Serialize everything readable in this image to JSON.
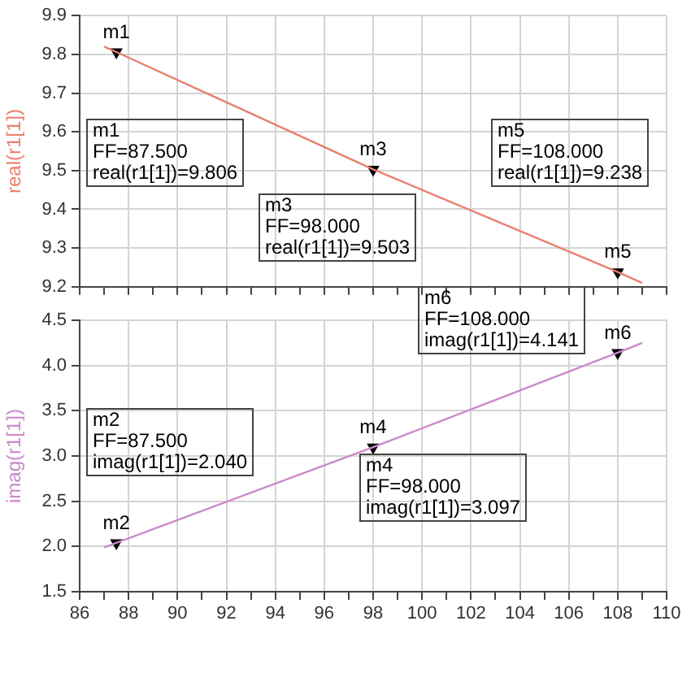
{
  "chart_data": [
    {
      "type": "line",
      "ylabel": "real(r1[1])",
      "xlim": [
        86,
        110
      ],
      "xticks": [
        86,
        {
          "value": 87,
          "label": null
        },
        88,
        {
          "value": 89,
          "label": null
        },
        90,
        {
          "value": 91,
          "label": null
        },
        92,
        {
          "value": 93,
          "label": null
        },
        94,
        {
          "value": 95,
          "label": null
        },
        96,
        {
          "value": 97,
          "label": null
        },
        98,
        {
          "value": 99,
          "label": null
        },
        100,
        {
          "value": 101,
          "label": null
        },
        102,
        {
          "value": 103,
          "label": null
        },
        104,
        {
          "value": 105,
          "label": null
        },
        106,
        {
          "value": 107,
          "label": null
        },
        108,
        {
          "value": 109,
          "label": null
        },
        110
      ],
      "ylim": [
        9.2,
        9.9
      ],
      "yticks": [
        9.2,
        9.3,
        9.4,
        9.5,
        9.6,
        9.7,
        9.8,
        9.9
      ],
      "grid": true,
      "tick_labels": "y",
      "series": [
        {
          "color": "#e8806e",
          "x": [
            87,
            87.5,
            98,
            108,
            109
          ],
          "values": [
            9.82,
            9.806,
            9.503,
            9.238,
            9.21
          ]
        },
        {
          "type": "scatter",
          "marker": "triangle",
          "color": "#000000",
          "x": [
            87.5,
            98,
            108
          ],
          "values": [
            9.806,
            9.503,
            9.238
          ]
        }
      ],
      "annotations": [
        {
          "text": "m1",
          "x": 87.5,
          "y": 9.806
        },
        {
          "text": "m3",
          "x": 98,
          "y": 9.503
        },
        {
          "text": "m5",
          "x": 108,
          "y": 9.238
        },
        "m1\nFF=87.500\nreal(r1[1])=9.806",
        "m3\nFF=98.000\nreal(r1[1])=9.503",
        "m5\nFF=108.000\nreal(r1[1])=9.238"
      ]
    },
    {
      "type": "line",
      "ylabel": "imag(r1[1])",
      "xlim": [
        86,
        110
      ],
      "xticks": [
        86,
        {
          "value": 87,
          "label": null
        },
        88,
        {
          "value": 89,
          "label": null
        },
        90,
        {
          "value": 91,
          "label": null
        },
        92,
        {
          "value": 93,
          "label": null
        },
        94,
        {
          "value": 95,
          "label": null
        },
        96,
        {
          "value": 97,
          "label": null
        },
        98,
        {
          "value": 99,
          "label": null
        },
        100,
        {
          "value": 101,
          "label": null
        },
        102,
        {
          "value": 103,
          "label": null
        },
        104,
        {
          "value": 105,
          "label": null
        },
        106,
        {
          "value": 107,
          "label": null
        },
        108,
        {
          "value": 109,
          "label": null
        },
        110
      ],
      "ylim": [
        1.5,
        4.5
      ],
      "yticks": [
        1.5,
        {
          "value": 2,
          "label": "2.0"
        },
        2.5,
        {
          "value": 3,
          "label": "3.0"
        },
        3.5,
        {
          "value": 4,
          "label": "4.0"
        },
        4.5
      ],
      "grid": true,
      "series": [
        {
          "color": "#cc88cc",
          "x": [
            87,
            87.5,
            98,
            108,
            109
          ],
          "values": [
            1.99,
            2.04,
            3.097,
            4.141,
            4.25
          ]
        },
        {
          "type": "scatter",
          "marker": "triangle",
          "color": "#000000",
          "x": [
            87.5,
            98,
            108
          ],
          "values": [
            2.04,
            3.097,
            4.141
          ]
        }
      ],
      "annotations": [
        {
          "text": "m2",
          "x": 87.5,
          "y": 2.04
        },
        {
          "text": "m4",
          "x": 98,
          "y": 3.097
        },
        {
          "text": "m6",
          "x": 108,
          "y": 4.141
        },
        "m2\nFF=87.500\nimag(r1[1])=2.040",
        "m4\nFF=98.000\nimag(r1[1])=3.097",
        "m6\nFF=108.000\nimag(r1[1])=4.141"
      ]
    }
  ]
}
